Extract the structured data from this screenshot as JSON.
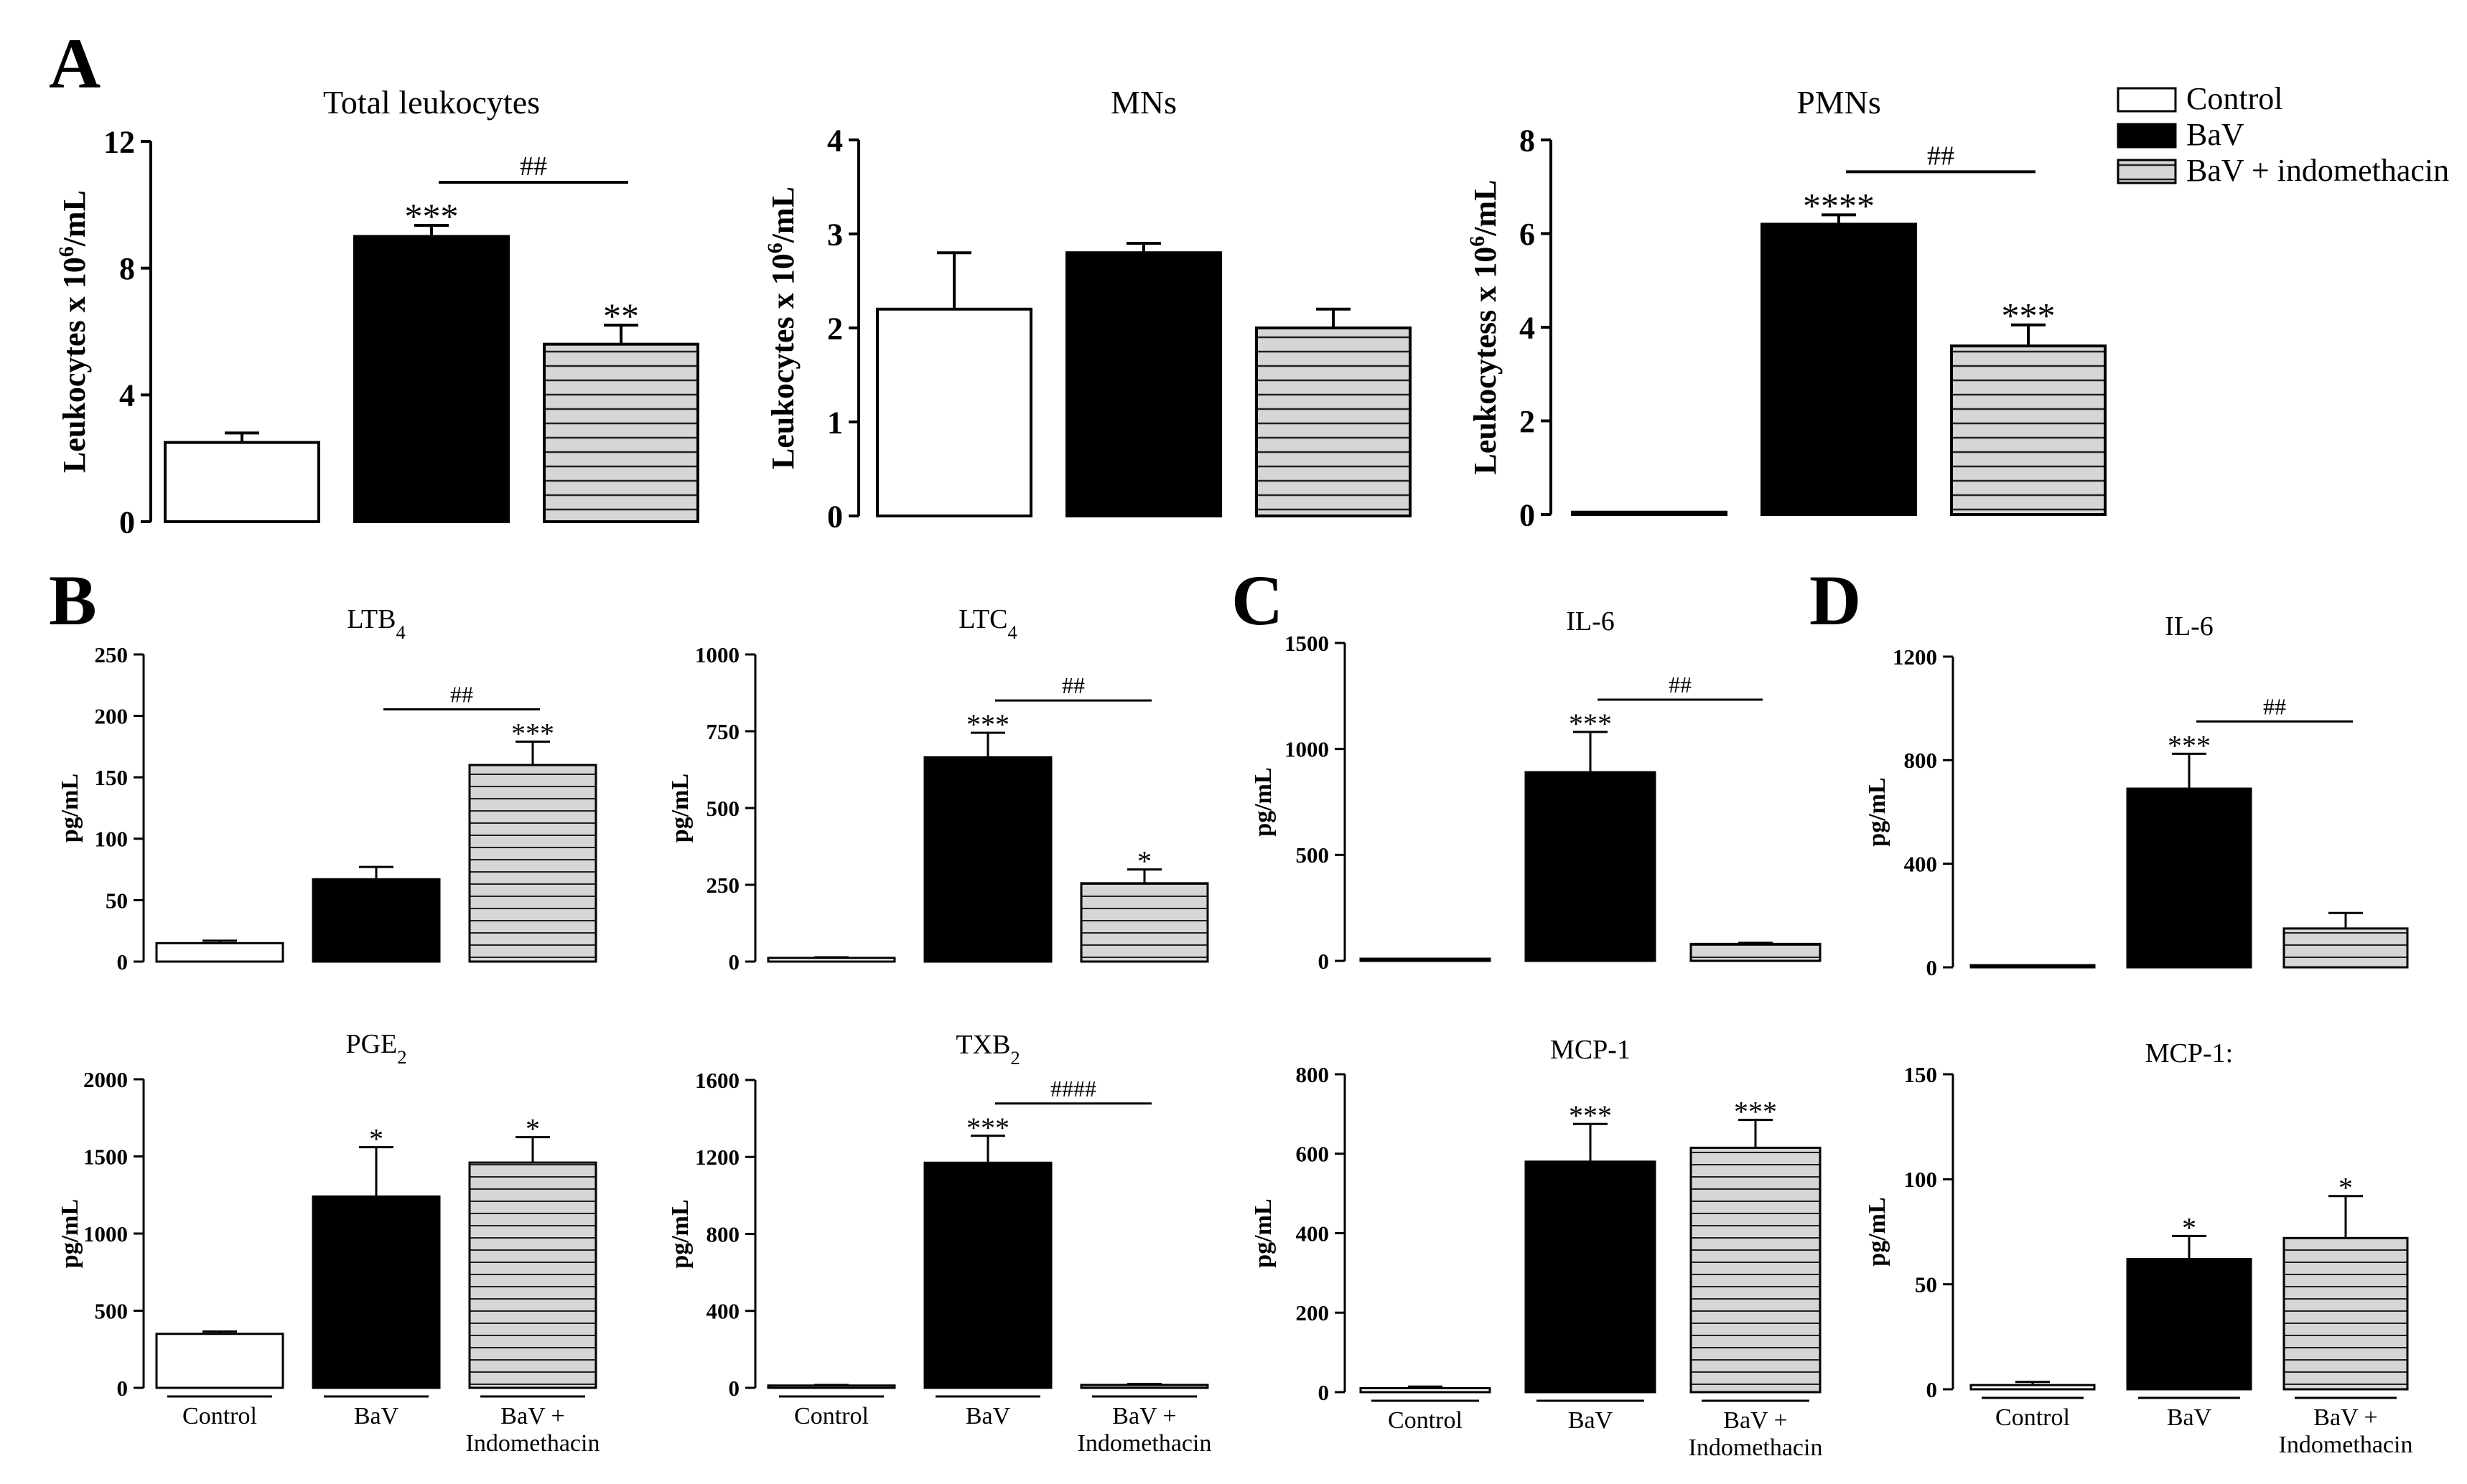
{
  "panel_letters": {
    "A": "A",
    "B": "B",
    "C": "C",
    "D": "D"
  },
  "legend": {
    "control": "Control",
    "bav": "BaV",
    "bav_indo": "BaV + indomethacin"
  },
  "chart_data": [
    {
      "id": "total-leukocytes",
      "type": "bar",
      "title": "Total leukocytes",
      "ylabel": "Leukocytes x 10⁶/mL",
      "categories": [
        "Control",
        "BaV",
        "BaV + indomethacin"
      ],
      "values": [
        2.5,
        9.0,
        5.6
      ],
      "errors": [
        0.3,
        0.35,
        0.6
      ],
      "ylim": [
        0,
        12
      ],
      "yticks": [
        "0",
        "4",
        "8",
        "12"
      ],
      "sig": [
        "",
        "***",
        "**"
      ],
      "hash": "##"
    },
    {
      "id": "mns",
      "type": "bar",
      "title": "MNs",
      "ylabel": "Leukocytes x 10⁶/mL",
      "categories": [
        "Control",
        "BaV",
        "BaV + indomethacin"
      ],
      "values": [
        2.2,
        2.8,
        2.0
      ],
      "errors": [
        0.6,
        0.1,
        0.2
      ],
      "ylim": [
        0,
        4
      ],
      "yticks": [
        "0",
        "1",
        "2",
        "3",
        "4"
      ],
      "sig": [
        "",
        "",
        ""
      ],
      "hash": ""
    },
    {
      "id": "pmns",
      "type": "bar",
      "title": "PMNs",
      "ylabel": "Leukocytess x 10⁶/mL",
      "categories": [
        "Control",
        "BaV",
        "BaV + indomethacin"
      ],
      "values": [
        0.05,
        6.2,
        3.6
      ],
      "errors": [
        0,
        0.2,
        0.45
      ],
      "ylim": [
        0,
        8
      ],
      "yticks": [
        "0",
        "2",
        "4",
        "6",
        "8"
      ],
      "sig": [
        "",
        "****",
        "***"
      ],
      "hash": "##"
    },
    {
      "id": "ltb4",
      "type": "bar",
      "title": "LTB4",
      "ylabel": "pg/mL",
      "categories": [
        "Control",
        "BaV",
        "BaV + Indomethacin"
      ],
      "values": [
        15,
        67,
        160
      ],
      "errors": [
        2,
        10,
        19
      ],
      "ylim": [
        0,
        250
      ],
      "yticks": [
        "0",
        "50",
        "100",
        "150",
        "200",
        "250"
      ],
      "sig": [
        "",
        "",
        "***"
      ],
      "hash": "##",
      "hash_pair": [
        1,
        2
      ]
    },
    {
      "id": "ltc4",
      "type": "bar",
      "title": "LTC4",
      "ylabel": "pg/mL",
      "categories": [
        "Control",
        "BaV",
        "BaV + Indomethacin"
      ],
      "values": [
        12,
        665,
        255
      ],
      "errors": [
        2,
        80,
        45
      ],
      "ylim": [
        0,
        1000
      ],
      "yticks": [
        "0",
        "250",
        "500",
        "750",
        "1000"
      ],
      "sig": [
        "",
        "***",
        "*"
      ],
      "hash": "##"
    },
    {
      "id": "il6-c",
      "type": "bar",
      "title": "IL-6",
      "ylabel": "pg/mL",
      "categories": [
        "Control",
        "BaV",
        "BaV + Indomethacin"
      ],
      "values": [
        2,
        890,
        80
      ],
      "errors": [
        0,
        190,
        5
      ],
      "ylim": [
        0,
        1500
      ],
      "yticks": [
        "0",
        "500",
        "1000",
        "1500"
      ],
      "sig": [
        "",
        "***",
        ""
      ],
      "hash": "##"
    },
    {
      "id": "il6-d",
      "type": "bar",
      "title": "IL-6",
      "ylabel": "pg/mL",
      "categories": [
        "Control",
        "BaV",
        "BaV + Indomethacin"
      ],
      "values": [
        2,
        690,
        150
      ],
      "errors": [
        0,
        135,
        60
      ],
      "ylim": [
        0,
        1200
      ],
      "yticks": [
        "0",
        "400",
        "800",
        "1200"
      ],
      "sig": [
        "",
        "***",
        ""
      ],
      "hash": "##"
    },
    {
      "id": "pge2",
      "type": "bar",
      "title": "PGE2",
      "ylabel": "pg/mL",
      "categories": [
        "Control",
        "BaV",
        "BaV + Indomethacin"
      ],
      "values": [
        350,
        1240,
        1460
      ],
      "errors": [
        15,
        320,
        165
      ],
      "ylim": [
        0,
        2000
      ],
      "yticks": [
        "0",
        "500",
        "1000",
        "1500",
        "2000"
      ],
      "sig": [
        "",
        "*",
        "*"
      ],
      "hash": ""
    },
    {
      "id": "txb2",
      "type": "bar",
      "title": "TXB2",
      "ylabel": "pg/mL",
      "categories": [
        "Control",
        "BaV",
        "BaV + Indomethacin"
      ],
      "values": [
        12,
        1170,
        15
      ],
      "errors": [
        3,
        140,
        5
      ],
      "ylim": [
        0,
        1600
      ],
      "yticks": [
        "0",
        "400",
        "800",
        "1200",
        "1600"
      ],
      "sig": [
        "",
        "***",
        ""
      ],
      "hash": "####"
    },
    {
      "id": "mcp1-c",
      "type": "bar",
      "title": "MCP-1",
      "ylabel": "pg/mL",
      "categories": [
        "Control",
        "BaV",
        "BaV + Indomethacin"
      ],
      "values": [
        10,
        580,
        615
      ],
      "errors": [
        4,
        95,
        70
      ],
      "ylim": [
        0,
        800
      ],
      "yticks": [
        "0",
        "200",
        "400",
        "600",
        "800"
      ],
      "sig": [
        "",
        "***",
        "***"
      ],
      "hash": ""
    },
    {
      "id": "mcp1-d",
      "type": "bar",
      "title": "MCP-1:",
      "ylabel": "pg/mL",
      "categories": [
        "Control",
        "BaV",
        "BaV + Indomethacin"
      ],
      "values": [
        2,
        62,
        72
      ],
      "errors": [
        1.5,
        11,
        20
      ],
      "ylim": [
        0,
        150
      ],
      "yticks": [
        "0",
        "50",
        "100",
        "150"
      ],
      "sig": [
        "",
        "*",
        "*"
      ],
      "hash": ""
    }
  ],
  "x_labels": {
    "control": "Control",
    "bav": "BaV",
    "bav_indo_line1": "BaV +",
    "bav_indo_line2": "Indomethacin"
  },
  "colors": {
    "control": "#ffffff",
    "bav": "#000000",
    "indo_fill": "#d6d6d6",
    "hash_line": "#000000"
  }
}
